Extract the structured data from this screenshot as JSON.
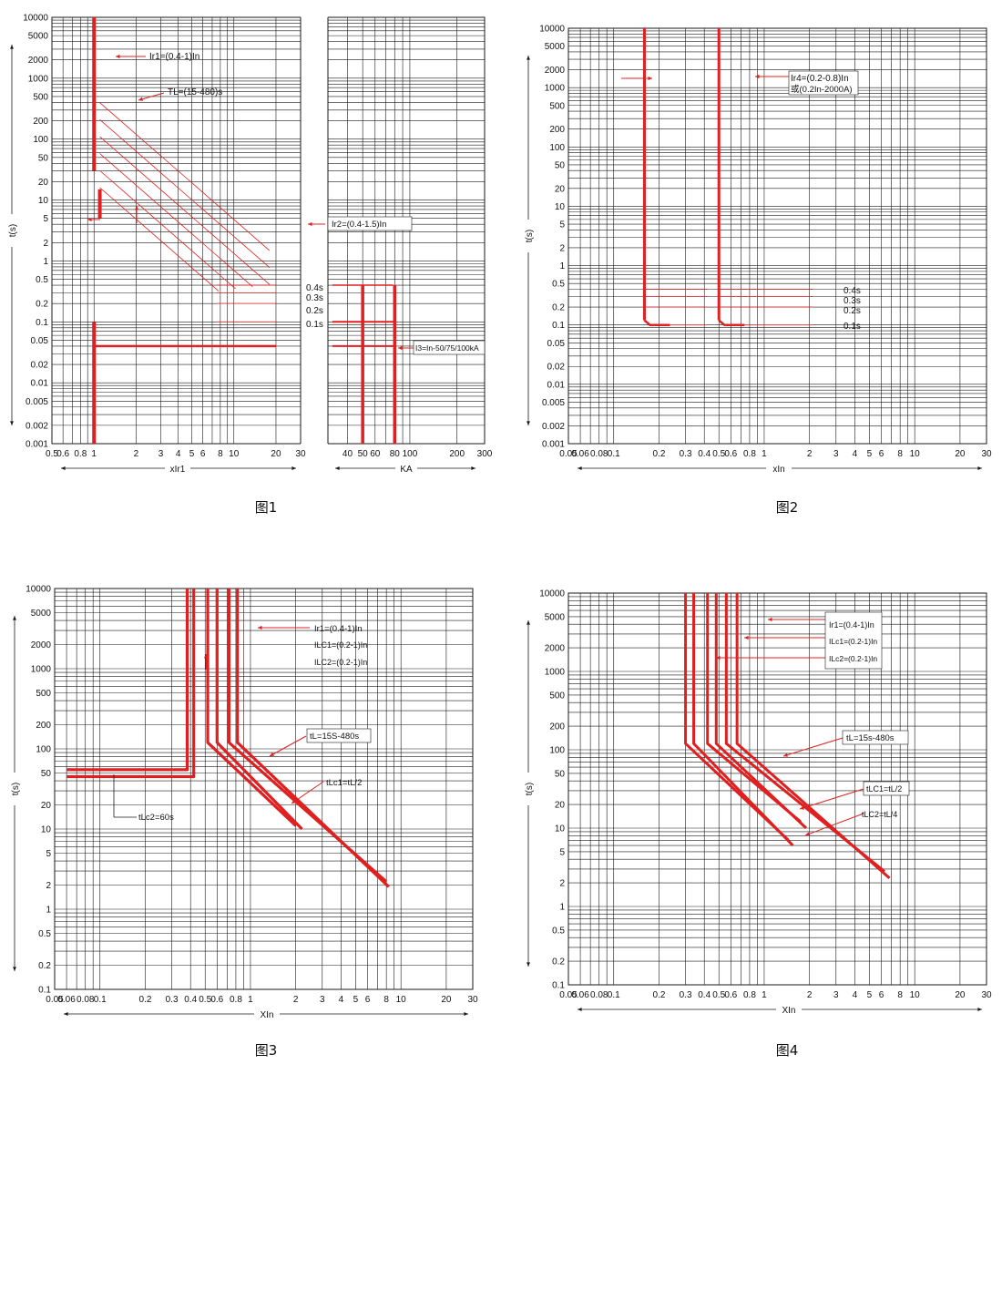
{
  "colors": {
    "curve": "#e02020",
    "grid": "#1a1a1a",
    "text": "#111111"
  },
  "chart_data": [
    {
      "type": "line",
      "caption": "图1",
      "ylabel": "t(s)",
      "y_log": true,
      "ylim": [
        0.001,
        10000
      ],
      "y_ticks": [
        "0.001",
        "0.002",
        "0.005",
        "0.01",
        "0.02",
        "0.05",
        "0.1",
        "0.2",
        "0.5",
        "1",
        "2",
        "5",
        "10",
        "20",
        "50",
        "100",
        "200",
        "500",
        "1000",
        "2000",
        "5000",
        "10000"
      ],
      "x_log": true,
      "xlim": [
        0.5,
        30
      ],
      "xlabel": "xIr1",
      "x_ticks": [
        "0.5",
        "0.6",
        "0.8",
        "1",
        "2",
        "3",
        "4",
        "5",
        "6",
        "8",
        "10",
        "20",
        "30"
      ],
      "x2lim": [
        30,
        300
      ],
      "x2label": "KA",
      "x2_ticks": [
        "40",
        "50",
        "60",
        "80",
        "100",
        "200",
        "300"
      ],
      "annotations": [
        "Ir1=(0.4-1)In",
        "TL=(15-480)s",
        "Ir2=(0.4-1.5)In",
        "0.4s",
        "0.3s",
        "0.2s",
        "0.1s",
        "I3=In-50/75/100kA"
      ]
    },
    {
      "type": "line",
      "caption": "图2",
      "ylabel": "t(s)",
      "y_log": true,
      "ylim": [
        0.001,
        10000
      ],
      "y_ticks": [
        "0.001",
        "0.002",
        "0.005",
        "0.01",
        "0.02",
        "0.05",
        "0.1",
        "0.2",
        "0.5",
        "1",
        "2",
        "5",
        "10",
        "20",
        "50",
        "100",
        "200",
        "500",
        "1000",
        "2000",
        "5000",
        "10000"
      ],
      "x_log": true,
      "xlim": [
        0.05,
        30
      ],
      "xlabel": "xIn",
      "x_ticks": [
        "0.05",
        "0.06",
        "0.08",
        "0.1",
        "0.2",
        "0.3",
        "0.4",
        "0.5",
        "0.6",
        "0.8",
        "1",
        "2",
        "3",
        "4",
        "5",
        "6",
        "8",
        "10",
        "20",
        "30"
      ],
      "annotations": [
        "Ir4=(0.2-0.8)In",
        "或(0.2In-2000A)",
        "0.4s",
        "0.3s",
        "0.2s",
        "0.1s"
      ]
    },
    {
      "type": "line",
      "caption": "图3",
      "ylabel": "t(s)",
      "y_log": true,
      "ylim": [
        0.1,
        10000
      ],
      "y_ticks": [
        "0.1",
        "0.2",
        "0.5",
        "1",
        "2",
        "5",
        "10",
        "20",
        "50",
        "100",
        "200",
        "500",
        "1000",
        "2000",
        "5000",
        "10000"
      ],
      "x_log": true,
      "xlim": [
        0.05,
        30
      ],
      "xlabel": "XIn",
      "x_ticks": [
        "0.05",
        "0.06",
        "0.08",
        "0.1",
        "0.2",
        "0.3",
        "0.4",
        "0.5",
        "0.6",
        "0.8",
        "1",
        "2",
        "3",
        "4",
        "5",
        "6",
        "8",
        "10",
        "20",
        "30"
      ],
      "annotations": [
        "Ir1=(0.4-1)In",
        "ILC1=(0.2-1)In",
        "ILC2=(0.2-1)In",
        "tL=15S-480s",
        "tLc1=tL/2",
        "tLc2=60s"
      ]
    },
    {
      "type": "line",
      "caption": "图4",
      "ylabel": "t(s)",
      "y_log": true,
      "ylim": [
        0.1,
        10000
      ],
      "y_ticks": [
        "0.1",
        "0.2",
        "0.5",
        "1",
        "2",
        "5",
        "10",
        "20",
        "50",
        "100",
        "200",
        "500",
        "1000",
        "2000",
        "5000",
        "10000"
      ],
      "x_log": true,
      "xlim": [
        0.05,
        30
      ],
      "xlabel": "XIn",
      "x_ticks": [
        "0.05",
        "0.06",
        "0.08",
        "0.1",
        "0.2",
        "0.3",
        "0.4",
        "0.5",
        "0.6",
        "0.8",
        "1",
        "2",
        "3",
        "4",
        "5",
        "6",
        "8",
        "10",
        "20",
        "30"
      ],
      "annotations": [
        "Ir1=(0.4-1)In",
        "ILc1=(0.2-1)In",
        "ILc2=(0.2-1)In",
        "tL=15s-480s",
        "tLC1=tL/2",
        "tLC2=tL/4"
      ]
    }
  ]
}
